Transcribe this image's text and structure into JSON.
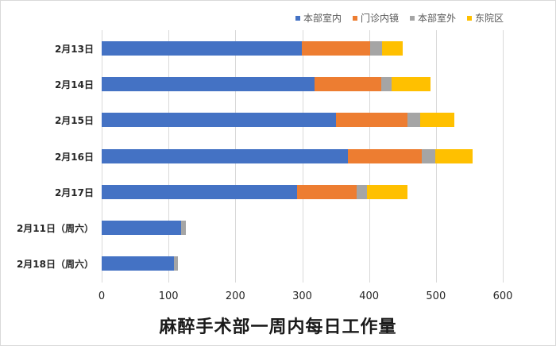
{
  "chart_data": {
    "type": "bar",
    "orientation": "horizontal",
    "stacked": true,
    "title": "麻醉手术部一周内每日工作量",
    "xlabel": "",
    "ylabel": "",
    "xlim": [
      0,
      600
    ],
    "xticks": [
      "0",
      "100",
      "200",
      "300",
      "400",
      "500",
      "600"
    ],
    "grid": true,
    "legend_position": "top-right",
    "categories": [
      "2月13日",
      "2月14日",
      "2月15日",
      "2月16日",
      "2月17日",
      "2月11日（周六）",
      "2月18日（周六）"
    ],
    "series": [
      {
        "name": "本部室内",
        "color": "#4472C4",
        "values": [
          299,
          319,
          350,
          368,
          292,
          119,
          108
        ]
      },
      {
        "name": "门诊内镜",
        "color": "#ED7D31",
        "values": [
          102,
          99,
          107,
          111,
          89,
          0,
          0
        ]
      },
      {
        "name": "本部室外",
        "color": "#A5A5A5",
        "values": [
          19,
          16,
          19,
          20,
          16,
          7,
          6
        ]
      },
      {
        "name": "东院区",
        "color": "#FFC000",
        "values": [
          30,
          58,
          52,
          56,
          60,
          0,
          0
        ]
      }
    ]
  }
}
